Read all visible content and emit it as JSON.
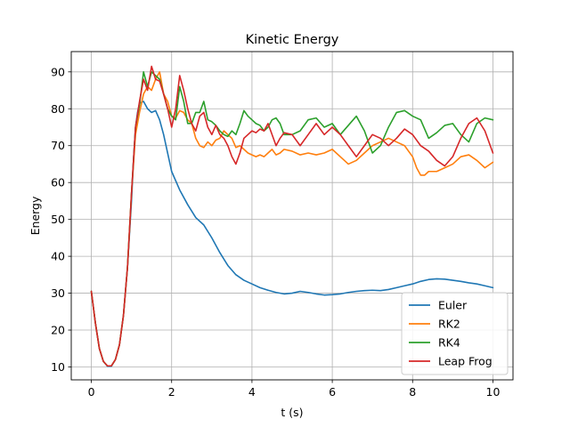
{
  "chart_data": {
    "type": "line",
    "title": "Kinetic Energy",
    "xlabel": "t (s)",
    "ylabel": "Energy",
    "xlim": [
      -0.5,
      10.5
    ],
    "ylim": [
      6.5,
      95.5
    ],
    "xticks": [
      0,
      2,
      4,
      6,
      8,
      10
    ],
    "yticks": [
      10,
      20,
      30,
      40,
      50,
      60,
      70,
      80,
      90
    ],
    "xtick_labels": [
      "0",
      "2",
      "4",
      "6",
      "8",
      "10"
    ],
    "ytick_labels": [
      "10",
      "20",
      "30",
      "40",
      "50",
      "60",
      "70",
      "80",
      "90"
    ],
    "grid": true,
    "legend_position": "lower-right",
    "series": [
      {
        "name": "Euler",
        "color": "#1f77b4",
        "points": [
          [
            0,
            30.5
          ],
          [
            0.1,
            22
          ],
          [
            0.2,
            15
          ],
          [
            0.3,
            11.5
          ],
          [
            0.4,
            10.2
          ],
          [
            0.5,
            10.2
          ],
          [
            0.6,
            12
          ],
          [
            0.7,
            16
          ],
          [
            0.8,
            24
          ],
          [
            0.9,
            37
          ],
          [
            1.0,
            55
          ],
          [
            1.05,
            66
          ],
          [
            1.1,
            75
          ],
          [
            1.15,
            79
          ],
          [
            1.2,
            81.5
          ],
          [
            1.3,
            82
          ],
          [
            1.4,
            80
          ],
          [
            1.5,
            79
          ],
          [
            1.6,
            79.5
          ],
          [
            1.7,
            77
          ],
          [
            1.8,
            73
          ],
          [
            1.9,
            68
          ],
          [
            2.0,
            63
          ],
          [
            2.2,
            58
          ],
          [
            2.4,
            54
          ],
          [
            2.6,
            50.5
          ],
          [
            2.8,
            48.5
          ],
          [
            3.0,
            45
          ],
          [
            3.2,
            41
          ],
          [
            3.4,
            37.5
          ],
          [
            3.6,
            35
          ],
          [
            3.8,
            33.5
          ],
          [
            4.0,
            32.5
          ],
          [
            4.2,
            31.5
          ],
          [
            4.4,
            30.8
          ],
          [
            4.6,
            30.2
          ],
          [
            4.8,
            29.8
          ],
          [
            5.0,
            30
          ],
          [
            5.2,
            30.5
          ],
          [
            5.4,
            30.2
          ],
          [
            5.6,
            29.8
          ],
          [
            5.8,
            29.5
          ],
          [
            6.0,
            29.6
          ],
          [
            6.2,
            29.8
          ],
          [
            6.4,
            30.2
          ],
          [
            6.6,
            30.5
          ],
          [
            6.8,
            30.7
          ],
          [
            7.0,
            30.8
          ],
          [
            7.2,
            30.7
          ],
          [
            7.4,
            31
          ],
          [
            7.6,
            31.5
          ],
          [
            7.8,
            32
          ],
          [
            8.0,
            32.5
          ],
          [
            8.2,
            33.2
          ],
          [
            8.4,
            33.7
          ],
          [
            8.6,
            33.9
          ],
          [
            8.8,
            33.8
          ],
          [
            9.0,
            33.5
          ],
          [
            9.2,
            33.2
          ],
          [
            9.4,
            32.8
          ],
          [
            9.6,
            32.5
          ],
          [
            9.8,
            32
          ],
          [
            10.0,
            31.5
          ]
        ]
      },
      {
        "name": "RK2",
        "color": "#ff7f0e",
        "points": [
          [
            0,
            30.5
          ],
          [
            0.1,
            22
          ],
          [
            0.2,
            15
          ],
          [
            0.3,
            11.5
          ],
          [
            0.4,
            10.3
          ],
          [
            0.5,
            10.3
          ],
          [
            0.6,
            12
          ],
          [
            0.7,
            16
          ],
          [
            0.8,
            24
          ],
          [
            0.9,
            37
          ],
          [
            1.0,
            57
          ],
          [
            1.1,
            73
          ],
          [
            1.2,
            79
          ],
          [
            1.3,
            84
          ],
          [
            1.4,
            86
          ],
          [
            1.5,
            85
          ],
          [
            1.6,
            88
          ],
          [
            1.7,
            90
          ],
          [
            1.8,
            84
          ],
          [
            1.9,
            82
          ],
          [
            2.0,
            78
          ],
          [
            2.1,
            77.5
          ],
          [
            2.2,
            79.5
          ],
          [
            2.3,
            79
          ],
          [
            2.4,
            77
          ],
          [
            2.5,
            76
          ],
          [
            2.6,
            72
          ],
          [
            2.7,
            70
          ],
          [
            2.8,
            69.5
          ],
          [
            2.9,
            71
          ],
          [
            3.0,
            70
          ],
          [
            3.1,
            71.5
          ],
          [
            3.2,
            72
          ],
          [
            3.3,
            74
          ],
          [
            3.4,
            73
          ],
          [
            3.5,
            72
          ],
          [
            3.6,
            69.5
          ],
          [
            3.7,
            70
          ],
          [
            3.8,
            69
          ],
          [
            3.9,
            68
          ],
          [
            4.0,
            67.5
          ],
          [
            4.1,
            67
          ],
          [
            4.2,
            67.5
          ],
          [
            4.3,
            67
          ],
          [
            4.4,
            68
          ],
          [
            4.5,
            69
          ],
          [
            4.6,
            67.5
          ],
          [
            4.7,
            68
          ],
          [
            4.8,
            69
          ],
          [
            5.0,
            68.5
          ],
          [
            5.2,
            67.5
          ],
          [
            5.4,
            68
          ],
          [
            5.6,
            67.5
          ],
          [
            5.8,
            68
          ],
          [
            6.0,
            69
          ],
          [
            6.2,
            67
          ],
          [
            6.4,
            65
          ],
          [
            6.6,
            66
          ],
          [
            6.8,
            68
          ],
          [
            7.0,
            70
          ],
          [
            7.2,
            71
          ],
          [
            7.4,
            72
          ],
          [
            7.6,
            71
          ],
          [
            7.8,
            70
          ],
          [
            8.0,
            67
          ],
          [
            8.1,
            64
          ],
          [
            8.2,
            62
          ],
          [
            8.3,
            62
          ],
          [
            8.4,
            63
          ],
          [
            8.6,
            63
          ],
          [
            8.8,
            64
          ],
          [
            9.0,
            65
          ],
          [
            9.2,
            67
          ],
          [
            9.4,
            67.5
          ],
          [
            9.6,
            66
          ],
          [
            9.8,
            64
          ],
          [
            10.0,
            65.5
          ]
        ]
      },
      {
        "name": "RK4",
        "color": "#2ca02c",
        "points": [
          [
            0,
            30.5
          ],
          [
            0.1,
            22
          ],
          [
            0.2,
            15
          ],
          [
            0.3,
            11.5
          ],
          [
            0.4,
            10.3
          ],
          [
            0.5,
            10.3
          ],
          [
            0.6,
            12
          ],
          [
            0.7,
            16
          ],
          [
            0.8,
            24
          ],
          [
            0.9,
            37
          ],
          [
            1.0,
            57
          ],
          [
            1.1,
            75
          ],
          [
            1.2,
            81
          ],
          [
            1.3,
            90
          ],
          [
            1.4,
            86
          ],
          [
            1.5,
            90
          ],
          [
            1.6,
            89
          ],
          [
            1.7,
            88
          ],
          [
            1.8,
            84
          ],
          [
            1.9,
            80
          ],
          [
            2.0,
            78
          ],
          [
            2.1,
            77
          ],
          [
            2.2,
            86
          ],
          [
            2.3,
            82
          ],
          [
            2.4,
            76
          ],
          [
            2.5,
            76
          ],
          [
            2.6,
            79
          ],
          [
            2.7,
            79
          ],
          [
            2.8,
            82
          ],
          [
            2.9,
            77
          ],
          [
            3.0,
            76.5
          ],
          [
            3.1,
            75.5
          ],
          [
            3.2,
            74
          ],
          [
            3.3,
            73
          ],
          [
            3.4,
            72.5
          ],
          [
            3.5,
            74
          ],
          [
            3.6,
            73
          ],
          [
            3.7,
            76
          ],
          [
            3.8,
            79.5
          ],
          [
            3.9,
            78
          ],
          [
            4.0,
            77
          ],
          [
            4.1,
            76
          ],
          [
            4.2,
            75.5
          ],
          [
            4.3,
            74
          ],
          [
            4.4,
            75
          ],
          [
            4.5,
            77
          ],
          [
            4.6,
            77.5
          ],
          [
            4.7,
            76
          ],
          [
            4.8,
            73
          ],
          [
            5.0,
            73
          ],
          [
            5.2,
            74
          ],
          [
            5.4,
            77
          ],
          [
            5.6,
            77.5
          ],
          [
            5.8,
            75
          ],
          [
            6.0,
            76
          ],
          [
            6.2,
            73
          ],
          [
            6.4,
            75.5
          ],
          [
            6.6,
            78
          ],
          [
            6.8,
            74
          ],
          [
            7.0,
            68
          ],
          [
            7.2,
            70
          ],
          [
            7.4,
            75
          ],
          [
            7.6,
            79
          ],
          [
            7.8,
            79.5
          ],
          [
            8.0,
            78
          ],
          [
            8.2,
            77
          ],
          [
            8.4,
            72
          ],
          [
            8.6,
            73.5
          ],
          [
            8.8,
            75.5
          ],
          [
            9.0,
            76
          ],
          [
            9.2,
            73
          ],
          [
            9.4,
            71
          ],
          [
            9.6,
            76
          ],
          [
            9.8,
            77.5
          ],
          [
            10.0,
            77
          ]
        ]
      },
      {
        "name": "Leap Frog",
        "color": "#d62728",
        "points": [
          [
            0,
            30.5
          ],
          [
            0.1,
            22
          ],
          [
            0.2,
            15
          ],
          [
            0.3,
            11.5
          ],
          [
            0.4,
            10.3
          ],
          [
            0.5,
            10.3
          ],
          [
            0.6,
            12
          ],
          [
            0.7,
            16
          ],
          [
            0.8,
            24
          ],
          [
            0.9,
            37
          ],
          [
            1.0,
            57
          ],
          [
            1.1,
            75
          ],
          [
            1.2,
            82
          ],
          [
            1.3,
            88
          ],
          [
            1.4,
            85
          ],
          [
            1.5,
            91.5
          ],
          [
            1.6,
            88
          ],
          [
            1.7,
            87.5
          ],
          [
            1.8,
            84
          ],
          [
            1.9,
            80
          ],
          [
            2.0,
            75
          ],
          [
            2.1,
            80
          ],
          [
            2.2,
            89
          ],
          [
            2.3,
            85
          ],
          [
            2.4,
            80
          ],
          [
            2.5,
            76
          ],
          [
            2.6,
            74
          ],
          [
            2.7,
            78
          ],
          [
            2.8,
            79
          ],
          [
            2.9,
            75
          ],
          [
            3.0,
            73
          ],
          [
            3.1,
            75.5
          ],
          [
            3.2,
            73
          ],
          [
            3.3,
            72
          ],
          [
            3.4,
            70
          ],
          [
            3.5,
            67
          ],
          [
            3.6,
            65
          ],
          [
            3.7,
            68
          ],
          [
            3.8,
            72
          ],
          [
            3.9,
            73
          ],
          [
            4.0,
            74
          ],
          [
            4.1,
            73.5
          ],
          [
            4.2,
            74.5
          ],
          [
            4.3,
            74
          ],
          [
            4.4,
            76
          ],
          [
            4.5,
            73
          ],
          [
            4.6,
            70
          ],
          [
            4.7,
            72
          ],
          [
            4.8,
            73.5
          ],
          [
            5.0,
            73
          ],
          [
            5.2,
            70
          ],
          [
            5.4,
            73
          ],
          [
            5.6,
            76
          ],
          [
            5.8,
            73
          ],
          [
            6.0,
            75
          ],
          [
            6.2,
            73
          ],
          [
            6.4,
            70
          ],
          [
            6.6,
            67
          ],
          [
            6.8,
            70
          ],
          [
            7.0,
            73
          ],
          [
            7.2,
            72
          ],
          [
            7.4,
            70
          ],
          [
            7.6,
            72
          ],
          [
            7.8,
            74.5
          ],
          [
            8.0,
            73
          ],
          [
            8.2,
            70
          ],
          [
            8.4,
            68.5
          ],
          [
            8.6,
            66
          ],
          [
            8.8,
            64.5
          ],
          [
            9.0,
            67
          ],
          [
            9.2,
            72
          ],
          [
            9.4,
            76
          ],
          [
            9.6,
            77.5
          ],
          [
            9.8,
            74
          ],
          [
            10.0,
            68
          ]
        ]
      }
    ]
  }
}
